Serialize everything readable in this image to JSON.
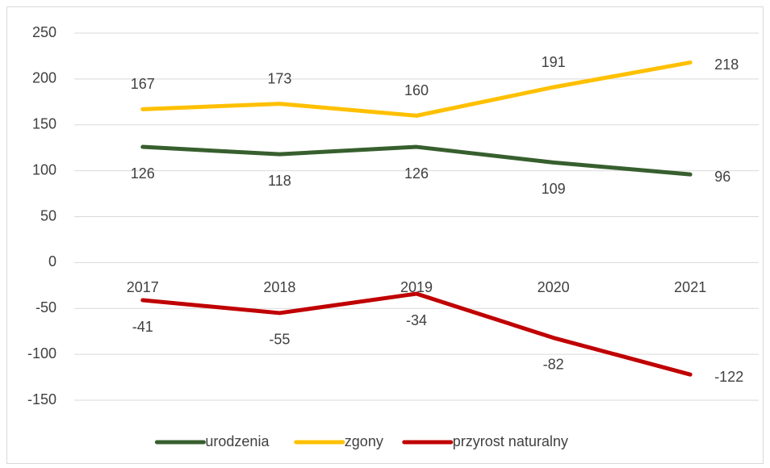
{
  "chart_data": {
    "type": "line",
    "categories": [
      "2017",
      "2018",
      "2019",
      "2020",
      "2021"
    ],
    "series": [
      {
        "name": "urodzenia",
        "color": "#375f2e",
        "values": [
          126,
          118,
          126,
          109,
          96
        ]
      },
      {
        "name": "zgony",
        "color": "#ffc000",
        "values": [
          167,
          173,
          160,
          191,
          218
        ]
      },
      {
        "name": "przyrost naturalny",
        "color": "#c00000",
        "values": [
          -41,
          -55,
          -34,
          -82,
          -122
        ]
      }
    ],
    "ylim": [
      -150,
      250
    ],
    "yticks": [
      -150,
      -100,
      -50,
      0,
      50,
      100,
      150,
      200,
      250
    ],
    "grid": true,
    "legend": "bottom"
  }
}
